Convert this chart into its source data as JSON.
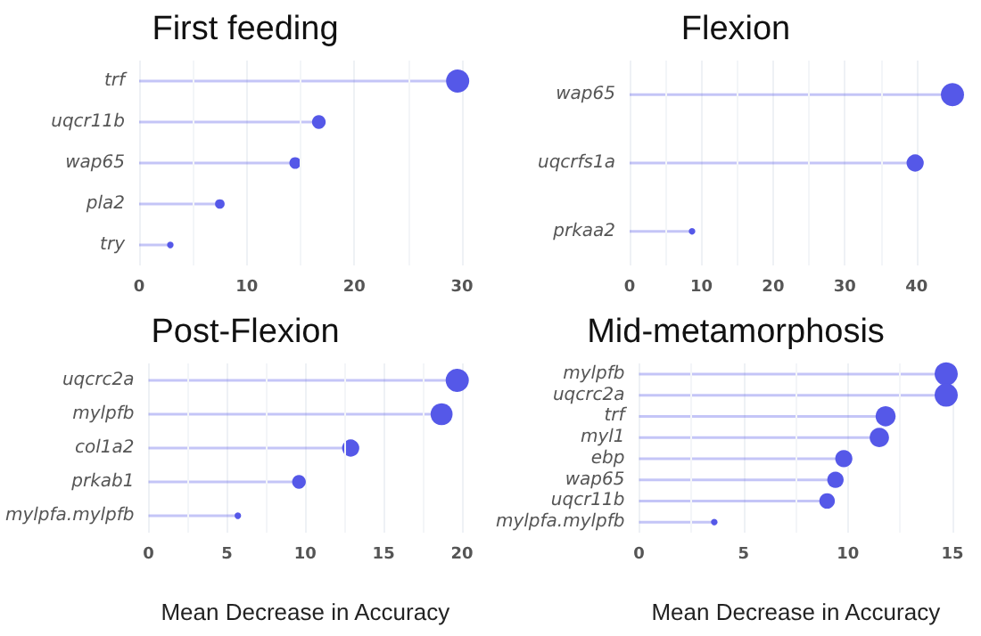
{
  "chart_data": [
    {
      "type": "lollipop",
      "orientation": "horizontal",
      "title": "First feeding",
      "categories": [
        "trf",
        "uqcr11b",
        "wap65",
        "pla2",
        "try"
      ],
      "series": [
        {
          "color": "#5558e8",
          "values": [
            29.6,
            16.7,
            14.5,
            7.5,
            2.9
          ],
          "sizes": [
            1,
            0.35,
            0.25,
            0.17,
            0.08
          ]
        }
      ],
      "xlim": [
        0,
        30
      ],
      "xticks": [
        0,
        10,
        20,
        30
      ],
      "grid": "x",
      "marker": "circle"
    },
    {
      "type": "lollipop",
      "orientation": "horizontal",
      "title": "Flexion",
      "categories": [
        "wap65",
        "uqcrfs1a",
        "prkaa2"
      ],
      "series": [
        {
          "color": "#5558e8",
          "values": [
            45,
            39.8,
            8.7
          ],
          "sizes": [
            1,
            0.55,
            0.08
          ]
        }
      ],
      "xlim": [
        0,
        45
      ],
      "xticks": [
        0,
        10,
        20,
        30,
        40
      ],
      "grid": "x",
      "marker": "circle"
    },
    {
      "type": "lollipop",
      "orientation": "horizontal",
      "title": "Post-Flexion",
      "xlabel": "Mean Decrease in Accuracy",
      "categories": [
        "uqcrc2a",
        "mylpfb",
        "col1a2",
        "prkab1",
        "mylpfa.mylpfb"
      ],
      "series": [
        {
          "color": "#5558e8",
          "values": [
            19.7,
            18.7,
            12.9,
            9.6,
            5.7
          ],
          "sizes": [
            1,
            0.9,
            0.55,
            0.35,
            0.08
          ]
        }
      ],
      "xlim": [
        0,
        20
      ],
      "xticks": [
        0,
        5,
        10,
        15,
        20
      ],
      "grid": "x",
      "marker": "circle"
    },
    {
      "type": "lollipop",
      "orientation": "horizontal",
      "title": "Mid-metamorphosis",
      "xlabel": "Mean Decrease in Accuracy",
      "categories": [
        "mylpfb",
        "uqcrc2a",
        "trf",
        "myl1",
        "ebp",
        "wap65",
        "uqcr11b",
        "mylpfa.mylpfb"
      ],
      "series": [
        {
          "color": "#5558e8",
          "values": [
            14.7,
            14.7,
            11.8,
            11.5,
            9.8,
            9.4,
            9.0,
            3.6
          ],
          "sizes": [
            1,
            1,
            0.75,
            0.7,
            0.55,
            0.5,
            0.45,
            0.08
          ]
        }
      ],
      "xlim": [
        0,
        15
      ],
      "xticks": [
        0,
        5,
        10,
        15
      ],
      "grid": "x",
      "marker": "circle"
    }
  ]
}
